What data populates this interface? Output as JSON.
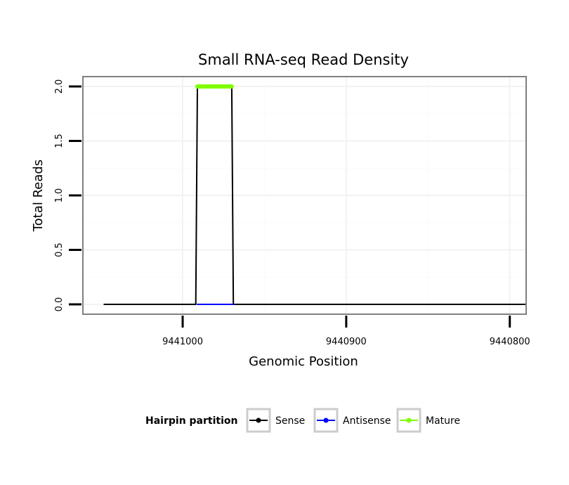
{
  "chart_data": {
    "type": "line",
    "title": "Small RNA-seq Read Density",
    "xlabel": "Genomic Position",
    "ylabel": "Total Reads",
    "xlim": [
      9441061,
      9440790
    ],
    "ylim": [
      -0.09,
      2.09
    ],
    "x_reversed": true,
    "xticks": [
      9441000,
      9440900,
      9440800
    ],
    "xtick_labels": [
      "9441000",
      "9440900",
      "9440800"
    ],
    "yticks": [
      0,
      0.5,
      1,
      1.5,
      2
    ],
    "ytick_labels": [
      "0.0",
      "0.5",
      "1.0",
      "1.5",
      "2.0"
    ],
    "grid": true,
    "legend": {
      "title": "Hairpin partition",
      "position": "bottom",
      "entries": [
        "Sense",
        "Antisense",
        "Mature"
      ]
    },
    "series": [
      {
        "name": "Sense",
        "color": "#000000",
        "x": [
          9441048,
          9440992,
          9440991,
          9440970,
          9440969,
          9440790
        ],
        "y": [
          0,
          0,
          2,
          2,
          0,
          0
        ]
      },
      {
        "name": "Antisense",
        "color": "#0000ff",
        "x": [
          9440991,
          9440969
        ],
        "y": [
          0,
          0
        ]
      },
      {
        "name": "Mature",
        "color": "#7fff00",
        "x": [
          9440991,
          9440970
        ],
        "y": [
          2,
          2
        ]
      }
    ]
  }
}
